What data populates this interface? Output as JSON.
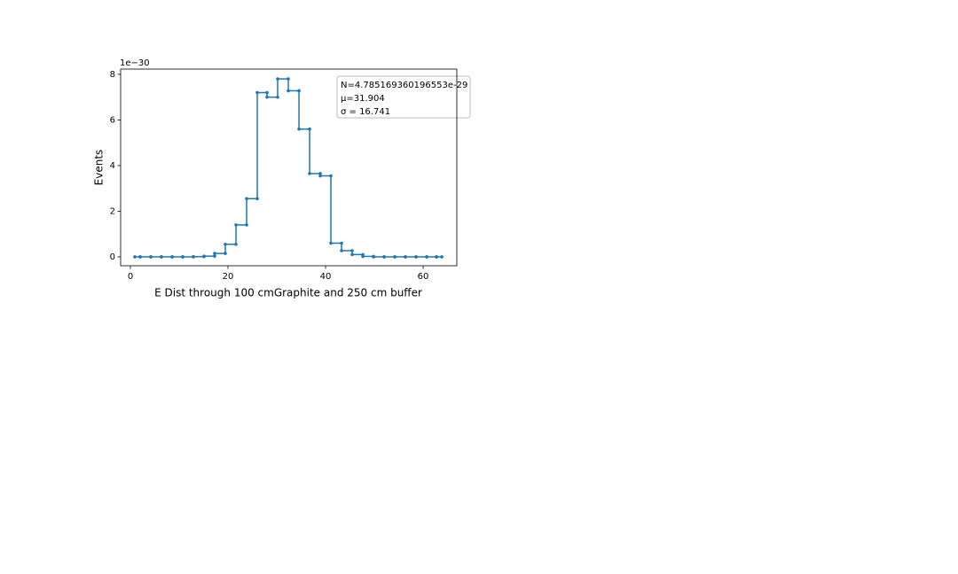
{
  "chart_data": {
    "type": "histogram",
    "xlabel": "E Dist through 100 cmGraphite and 250 cm buffer",
    "ylabel": "Events",
    "y_offset_text": "1e−30",
    "bins": [
      0.91,
      2.0,
      4.18,
      6.36,
      8.55,
      10.73,
      12.91,
      15.09,
      17.27,
      19.45,
      21.64,
      23.82,
      26.0,
      28.0,
      30.18,
      32.36,
      34.55,
      36.73,
      38.91,
      41.09,
      43.27,
      45.45,
      47.64,
      49.82,
      52.0,
      54.18,
      56.36,
      58.55,
      60.73,
      62.73,
      63.82
    ],
    "values": [
      0,
      0,
      0,
      0,
      0,
      0,
      0.01,
      0.03,
      0.15,
      0.55,
      1.4,
      2.55,
      7.2,
      7.0,
      7.8,
      7.28,
      5.6,
      3.65,
      3.55,
      0.6,
      0.27,
      0.1,
      0.02,
      0,
      0,
      0,
      0,
      0,
      0,
      0
    ],
    "color": "#1f77b4",
    "xlim": [
      -2,
      66.9
    ],
    "ylim": [
      -0.39,
      8.23
    ],
    "xticks": [
      0,
      20,
      40,
      60
    ],
    "yticks": [
      0,
      2,
      4,
      6,
      8
    ],
    "annotations": [
      "N=4.785169360196553e-29",
      "μ=31.904",
      "σ = 16.741"
    ]
  }
}
